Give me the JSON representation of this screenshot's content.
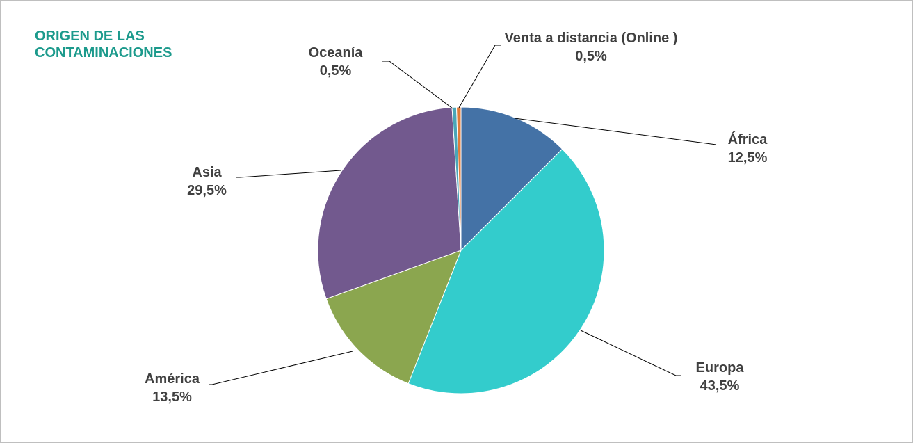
{
  "chart_data": {
    "type": "pie",
    "title": "ORIGEN DE LAS CONTAMINACIONES",
    "categories": [
      "África",
      "Europa",
      "América",
      "Asia",
      "Oceanía",
      "Venta a distancia (Online )"
    ],
    "values": [
      12.5,
      43.5,
      13.5,
      29.5,
      0.5,
      0.5
    ],
    "value_labels": [
      "12,5%",
      "43,5%",
      "13,5%",
      "29,5%",
      "0,5%",
      "0,5%"
    ],
    "colors": [
      "#4472a6",
      "#33cccc",
      "#8ba64f",
      "#72598e",
      "#4aa6b8",
      "#e07b39"
    ]
  }
}
